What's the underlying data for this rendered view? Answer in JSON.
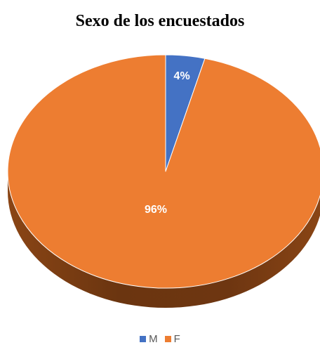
{
  "chart_data": {
    "type": "pie",
    "title": "Sexo de los encuestados",
    "categories": [
      "M",
      "F"
    ],
    "values": [
      4,
      96
    ],
    "data_labels": [
      "4%",
      "96%"
    ],
    "colors": [
      "#4472C4",
      "#ED7D31"
    ],
    "legend_position": "bottom",
    "style": "3d"
  }
}
